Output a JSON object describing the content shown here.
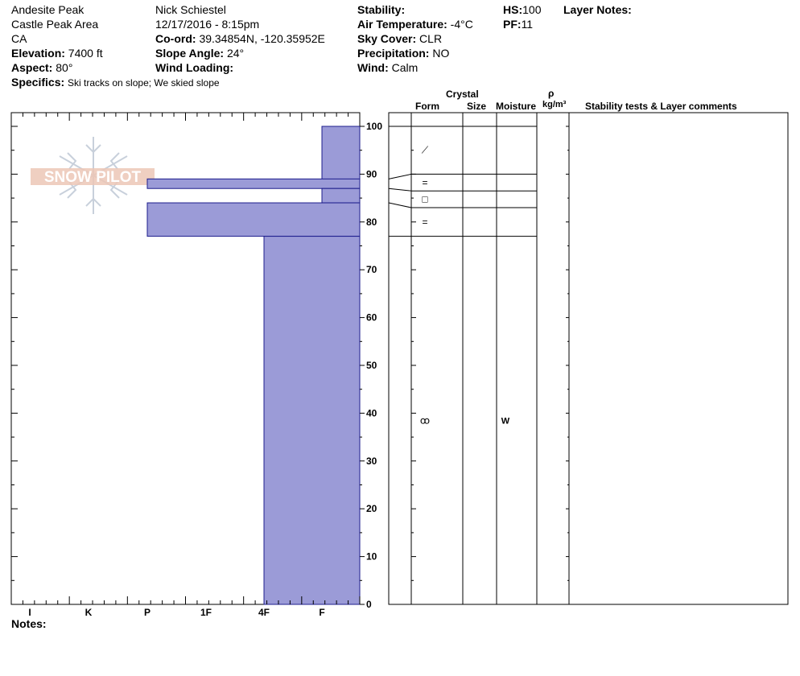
{
  "header": {
    "location": "Andesite Peak",
    "area": "Castle Peak Area",
    "state": "CA",
    "elevation_label": "Elevation:",
    "elevation": "7400 ft",
    "aspect_label": "Aspect:",
    "aspect": "80°",
    "specifics_label": "Specifics:",
    "specifics": "Ski tracks on slope; We skied slope",
    "observer": "Nick Schiestel",
    "datetime": "12/17/2016 - 8:15pm",
    "coord_label": "Co-ord:",
    "coord": "39.34854N, -120.35952E",
    "slope_label": "Slope Angle:",
    "slope": "24°",
    "wind_loading_label": "Wind Loading:",
    "wind_loading": "",
    "stability_label": "Stability:",
    "stability": "",
    "air_temp_label": "Air Temperature:",
    "air_temp": "-4°C",
    "sky_label": "Sky Cover:",
    "sky": "CLR",
    "precip_label": "Precipitation:",
    "precip": "NO",
    "wind_label": "Wind:",
    "wind": "Calm",
    "hs_label": "HS:",
    "hs": "100",
    "pf_label": "PF:",
    "pf": "11",
    "layer_notes_label": "Layer Notes:"
  },
  "logo_text": "SNOW PILOT",
  "columns": {
    "crystal": "Crystal",
    "form": "Form",
    "size": "Size",
    "moisture": "Moisture",
    "rho": "ρ",
    "density_unit": "kg/m³",
    "stability_comments": "Stability tests & Layer comments"
  },
  "notes_label": "Notes:",
  "colors": {
    "layer_fill": "#9b9bd7",
    "layer_stroke": "#1c1c8c"
  },
  "chart_data": {
    "type": "bar",
    "orientation": "horizontal",
    "x_axis": {
      "categories": [
        "I",
        "K",
        "P",
        "1F",
        "4F",
        "F"
      ],
      "direction": "hardness decreasing to the right"
    },
    "y_axis": {
      "min": 0,
      "max": 100,
      "ticks": [
        0,
        10,
        20,
        30,
        40,
        50,
        60,
        70,
        80,
        90,
        100
      ]
    },
    "layers": [
      {
        "top": 100,
        "bottom": 87,
        "hardness": "F"
      },
      {
        "top": 89,
        "bottom": 87,
        "hardness": "P"
      },
      {
        "top": 87,
        "bottom": 84,
        "hardness": "F"
      },
      {
        "top": 84,
        "bottom": 77,
        "hardness": "P"
      },
      {
        "top": 77,
        "bottom": 0,
        "hardness": "4F"
      }
    ],
    "layer_details": [
      {
        "top": 100,
        "bottom": 90,
        "form": "decomposing",
        "form_symbol": "⟋",
        "moisture": ""
      },
      {
        "top": 90,
        "bottom": 86.5,
        "form": "rounded",
        "form_symbol": "=",
        "moisture": ""
      },
      {
        "top": 86.5,
        "bottom": 83,
        "form": "faceted",
        "form_symbol": "□",
        "moisture": ""
      },
      {
        "top": 83,
        "bottom": 77,
        "form": "rounded",
        "form_symbol": "=",
        "moisture": ""
      },
      {
        "top": 77,
        "bottom": 0,
        "form": "melt-freeze",
        "form_symbol": "ꝏ",
        "moisture": "W"
      }
    ]
  }
}
